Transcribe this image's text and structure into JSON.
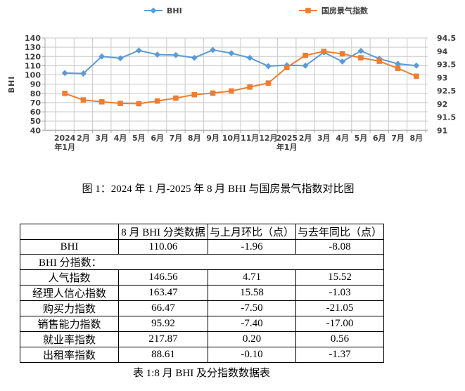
{
  "figure": {
    "caption": "图 1：2024 年 1 月-2025 年 8 月 BHI 与国房景气指数对比图"
  },
  "chart_data": {
    "type": "line",
    "categories": [
      [
        "2024",
        "年1月"
      ],
      [
        "2月"
      ],
      [
        "3月"
      ],
      [
        "4月"
      ],
      [
        "5月"
      ],
      [
        "6月"
      ],
      [
        "7月"
      ],
      [
        "8月"
      ],
      [
        "9月"
      ],
      [
        "10月"
      ],
      [
        "11月"
      ],
      [
        "12月"
      ],
      [
        "2025",
        "年1月"
      ],
      [
        "2月"
      ],
      [
        "3月"
      ],
      [
        "4月"
      ],
      [
        "5月"
      ],
      [
        "6月"
      ],
      [
        "7月"
      ],
      [
        "8月"
      ]
    ],
    "series": [
      {
        "name": "BHI",
        "axis": "left",
        "marker": "diamond",
        "color": "#5B9BD5",
        "values": [
          102,
          101.5,
          120,
          118,
          126.5,
          122,
          121.5,
          118.5,
          127,
          123.5,
          118.5,
          109.5,
          110.5,
          110,
          124.5,
          114.5,
          126,
          117.5,
          112,
          110.06
        ]
      },
      {
        "name": "国房景气指数",
        "axis": "right",
        "marker": "square",
        "color": "#ED7D31",
        "values": [
          92.4,
          92.15,
          92.08,
          92.02,
          92.01,
          92.11,
          92.22,
          92.35,
          92.41,
          92.49,
          92.64,
          92.79,
          93.38,
          93.84,
          93.99,
          93.9,
          93.75,
          93.62,
          93.35,
          93.05
        ]
      }
    ],
    "left_axis": {
      "title": "BHI",
      "ticks": [
        140,
        130,
        120,
        110,
        100,
        90,
        80,
        70,
        60,
        50,
        40
      ],
      "ylim": [
        40,
        140
      ]
    },
    "right_axis": {
      "ticks": [
        94.5,
        94,
        93.5,
        93,
        92.5,
        92,
        91.5,
        91
      ],
      "ylim": [
        91,
        94.5
      ]
    },
    "grid": true,
    "legend_position": "top"
  },
  "table": {
    "headers": [
      "",
      "8 月 BHI 分类数据",
      "与上月环比（点）",
      "与去年同比（点）"
    ],
    "rows": [
      {
        "cells": [
          "BHI",
          "110.06",
          "-1.96",
          "-8.08"
        ]
      },
      {
        "section": "BHI 分指数："
      },
      {
        "cells": [
          "人气指数",
          "146.56",
          "4.71",
          "15.52"
        ]
      },
      {
        "cells": [
          "经理人信心指数",
          "163.47",
          "15.58",
          "-1.03"
        ]
      },
      {
        "cells": [
          "购买力指数",
          "66.47",
          "-7.50",
          "-21.05"
        ]
      },
      {
        "cells": [
          "销售能力指数",
          "95.92",
          "-7.40",
          "-17.00"
        ]
      },
      {
        "cells": [
          "就业率指数",
          "217.87",
          "0.20",
          "0.56"
        ]
      },
      {
        "cells": [
          "出租率指数",
          "88.61",
          "-0.10",
          "-1.37"
        ]
      }
    ],
    "caption": "表 1:8 月 BHI 及分指数数据表"
  },
  "colors": {
    "bhi": "#5B9BD5",
    "guofang": "#ED7D31",
    "grid": "#C9C9C9",
    "axis": "#A6A6A6",
    "tick_text": "#404040"
  }
}
